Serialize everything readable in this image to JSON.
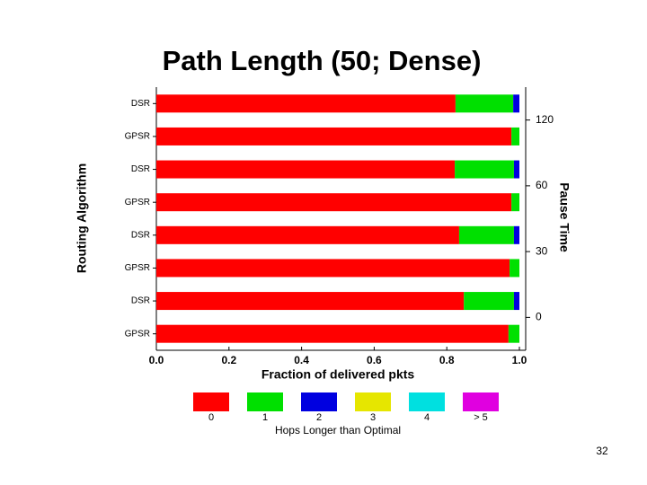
{
  "chart_data": {
    "type": "bar",
    "orientation": "horizontal",
    "stacked": true,
    "title": "Path Length (50; Dense)",
    "y_label": "Routing Algorithm",
    "x_label": "Fraction of delivered pkts",
    "legend_title": "Hops Longer than Optimal",
    "categories": [
      "DSR",
      "GPSR",
      "DSR",
      "GPSR",
      "DSR",
      "GPSR",
      "DSR",
      "GPSR"
    ],
    "series": [
      {
        "name": "0",
        "color": "#ff0000",
        "values": [
          0.824,
          0.978,
          0.822,
          0.978,
          0.834,
          0.973,
          0.847,
          0.97
        ]
      },
      {
        "name": "1",
        "color": "#00e000",
        "values": [
          0.159,
          0.022,
          0.163,
          0.022,
          0.151,
          0.027,
          0.138,
          0.03
        ]
      },
      {
        "name": "2",
        "color": "#0000e0",
        "values": [
          0.017,
          0,
          0.015,
          0,
          0.015,
          0,
          0.015,
          0
        ]
      },
      {
        "name": "3",
        "color": "#e6e600",
        "values": [
          0,
          0,
          0,
          0,
          0,
          0,
          0,
          0
        ]
      },
      {
        "name": "4",
        "color": "#00e0e0",
        "values": [
          0,
          0,
          0,
          0,
          0,
          0,
          0,
          0
        ]
      },
      {
        "name": "> 5",
        "color": "#e000e0",
        "values": [
          0,
          0,
          0,
          0,
          0,
          0,
          0,
          0
        ]
      }
    ],
    "xlim": [
      0,
      1
    ],
    "xticks": [
      {
        "value": 0,
        "label": "0.0"
      },
      0.2,
      0.4,
      0.6,
      0.8,
      {
        "value": 1,
        "label": "1.0"
      }
    ],
    "y2_label": "Pause Time",
    "y2_groups": [
      120,
      60,
      30,
      0
    ]
  },
  "page_number": 32
}
